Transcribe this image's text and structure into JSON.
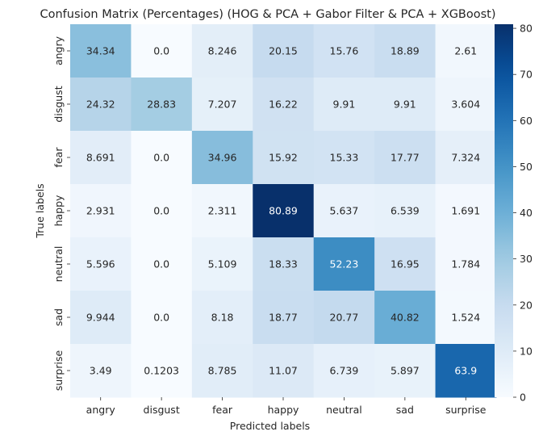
{
  "chart_data": {
    "type": "heatmap",
    "title": "Confusion Matrix (Percentages) (HOG & PCA + Gabor Filter & PCA + XGBoost)",
    "xlabel": "Predicted labels",
    "ylabel": "True labels",
    "x_categories": [
      "angry",
      "disgust",
      "fear",
      "happy",
      "neutral",
      "sad",
      "surprise"
    ],
    "y_categories": [
      "angry",
      "disgust",
      "fear",
      "happy",
      "neutral",
      "sad",
      "surprise"
    ],
    "cell_labels": [
      [
        "34.34",
        "0.0",
        "8.246",
        "20.15",
        "15.76",
        "18.89",
        "2.61"
      ],
      [
        "24.32",
        "28.83",
        "7.207",
        "16.22",
        "9.91",
        "9.91",
        "3.604"
      ],
      [
        "8.691",
        "0.0",
        "34.96",
        "15.92",
        "15.33",
        "17.77",
        "7.324"
      ],
      [
        "2.931",
        "0.0",
        "2.311",
        "80.89",
        "5.637",
        "6.539",
        "1.691"
      ],
      [
        "5.596",
        "0.0",
        "5.109",
        "18.33",
        "52.23",
        "16.95",
        "1.784"
      ],
      [
        "9.944",
        "0.0",
        "8.18",
        "18.77",
        "20.77",
        "40.82",
        "1.524"
      ],
      [
        "3.49",
        "0.1203",
        "8.785",
        "11.07",
        "6.739",
        "5.897",
        "63.9"
      ]
    ],
    "values": [
      [
        34.34,
        0.0,
        8.246,
        20.15,
        15.76,
        18.89,
        2.61
      ],
      [
        24.32,
        28.83,
        7.207,
        16.22,
        9.91,
        9.91,
        3.604
      ],
      [
        8.691,
        0.0,
        34.96,
        15.92,
        15.33,
        17.77,
        7.324
      ],
      [
        2.931,
        0.0,
        2.311,
        80.89,
        5.637,
        6.539,
        1.691
      ],
      [
        5.596,
        0.0,
        5.109,
        18.33,
        52.23,
        16.95,
        1.784
      ],
      [
        9.944,
        0.0,
        8.18,
        18.77,
        20.77,
        40.82,
        1.524
      ],
      [
        3.49,
        0.1203,
        8.785,
        11.07,
        6.739,
        5.897,
        63.9
      ]
    ],
    "colormap": "Blues",
    "colorbar": {
      "range": [
        0,
        80.89
      ],
      "ticks": [
        0,
        10,
        20,
        30,
        40,
        50,
        60,
        70,
        80
      ],
      "tick_labels": [
        "0",
        "10",
        "20",
        "30",
        "40",
        "50",
        "60",
        "70",
        "80"
      ]
    },
    "grid": false,
    "legend": "colorbar-right"
  }
}
